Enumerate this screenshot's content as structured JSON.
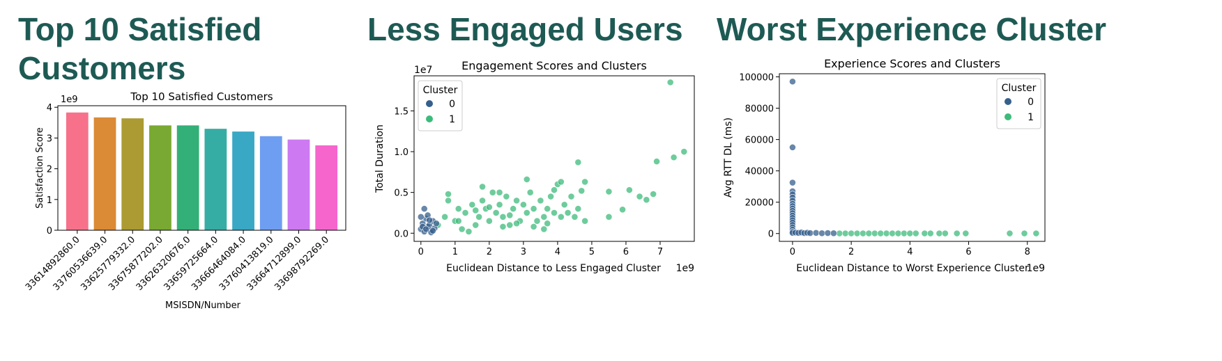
{
  "headings": {
    "top10": [
      "Top 10 Satisfied",
      "Customers"
    ],
    "engaged": "Less Engaged Users",
    "experience": "Worst Experience Cluster"
  },
  "chart_data": [
    {
      "type": "bar",
      "title": "Top 10 Satisfied Customers",
      "xlabel": "MSISDN/Number",
      "ylabel": "Satisfaction Score",
      "y_offset_label": "1e9",
      "ylim": [
        0,
        4.05
      ],
      "yticks": [
        0,
        1,
        2,
        3,
        4
      ],
      "categories": [
        "33614892860.0",
        "33760536639.0",
        "33625779332.0",
        "33675877202.0",
        "33626320676.0",
        "33659725664.0",
        "33666464084.0",
        "33760413819.0",
        "33664712899.0",
        "33698792269.0"
      ],
      "values": [
        3.83,
        3.67,
        3.64,
        3.41,
        3.41,
        3.3,
        3.21,
        3.06,
        2.95,
        2.76
      ],
      "colors": [
        "#f7718a",
        "#db8a35",
        "#ab9b32",
        "#79a932",
        "#33b077",
        "#36ada4",
        "#38a8c5",
        "#6e9ef2",
        "#cd79f2",
        "#f565cc"
      ]
    },
    {
      "type": "scatter",
      "title": "Engagement Scores and Clusters",
      "xlabel": "Euclidean Distance to Less Engaged Cluster",
      "ylabel": "Total Duration",
      "x_offset_label": "1e9",
      "y_offset_label": "1e7",
      "xlim": [
        -0.2,
        8.0
      ],
      "ylim": [
        -0.1,
        1.93
      ],
      "xticks": [
        0,
        1,
        2,
        3,
        4,
        5,
        6,
        7
      ],
      "yticks": [
        0.0,
        0.5,
        1.0,
        1.5
      ],
      "legend": {
        "title": "Cluster",
        "position": "top-left",
        "entries": [
          "0",
          "1"
        ]
      },
      "series": [
        {
          "name": "0",
          "color": "#365f8c",
          "points": [
            [
              0.0,
              0.05
            ],
            [
              0.05,
              0.12
            ],
            [
              0.1,
              0.02
            ],
            [
              0.15,
              0.18
            ],
            [
              0.2,
              0.08
            ],
            [
              0.25,
              0.1
            ],
            [
              0.3,
              0.04
            ],
            [
              0.35,
              0.15
            ],
            [
              0.4,
              0.06
            ],
            [
              0.1,
              0.3
            ],
            [
              0.0,
              0.2
            ],
            [
              0.2,
              0.22
            ],
            [
              0.3,
              0.01
            ],
            [
              0.05,
              0.08
            ],
            [
              0.45,
              0.12
            ],
            [
              0.15,
              0.05
            ],
            [
              0.25,
              0.16
            ],
            [
              0.35,
              0.03
            ]
          ]
        },
        {
          "name": "1",
          "color": "#3dbb7b",
          "points": [
            [
              0.5,
              0.1
            ],
            [
              0.7,
              0.2
            ],
            [
              0.8,
              0.4
            ],
            [
              1.0,
              0.15
            ],
            [
              1.1,
              0.3
            ],
            [
              1.2,
              0.05
            ],
            [
              1.3,
              0.25
            ],
            [
              1.5,
              0.35
            ],
            [
              1.6,
              0.1
            ],
            [
              1.7,
              0.2
            ],
            [
              1.8,
              0.4
            ],
            [
              1.9,
              0.3
            ],
            [
              2.0,
              0.15
            ],
            [
              2.1,
              0.5
            ],
            [
              2.2,
              0.25
            ],
            [
              2.3,
              0.35
            ],
            [
              2.4,
              0.2
            ],
            [
              2.5,
              0.45
            ],
            [
              2.6,
              0.1
            ],
            [
              2.7,
              0.3
            ],
            [
              2.8,
              0.4
            ],
            [
              2.9,
              0.15
            ],
            [
              3.0,
              0.35
            ],
            [
              3.1,
              0.25
            ],
            [
              3.2,
              0.5
            ],
            [
              3.3,
              0.3
            ],
            [
              3.4,
              0.15
            ],
            [
              3.5,
              0.4
            ],
            [
              3.6,
              0.2
            ],
            [
              3.7,
              0.3
            ],
            [
              3.8,
              0.45
            ],
            [
              3.9,
              0.25
            ],
            [
              4.0,
              0.6
            ],
            [
              4.1,
              0.2
            ],
            [
              4.2,
              0.35
            ],
            [
              4.3,
              0.25
            ],
            [
              4.4,
              0.45
            ],
            [
              4.5,
              0.2
            ],
            [
              4.6,
              0.3
            ],
            [
              4.8,
              0.15
            ],
            [
              0.8,
              0.48
            ],
            [
              1.8,
              0.57
            ],
            [
              2.3,
              0.5
            ],
            [
              3.1,
              0.66
            ],
            [
              3.9,
              0.53
            ],
            [
              4.1,
              0.63
            ],
            [
              4.6,
              0.87
            ],
            [
              4.7,
              0.52
            ],
            [
              4.8,
              0.63
            ],
            [
              5.5,
              0.51
            ],
            [
              5.5,
              0.2
            ],
            [
              5.9,
              0.29
            ],
            [
              6.1,
              0.53
            ],
            [
              6.4,
              0.45
            ],
            [
              6.6,
              0.41
            ],
            [
              6.8,
              0.48
            ],
            [
              6.9,
              0.88
            ],
            [
              7.3,
              1.85
            ],
            [
              7.4,
              0.93
            ],
            [
              7.7,
              1.0
            ],
            [
              2.4,
              0.08
            ],
            [
              1.4,
              0.02
            ],
            [
              3.6,
              0.05
            ],
            [
              2.0,
              0.32
            ],
            [
              2.8,
              0.12
            ],
            [
              3.3,
              0.08
            ],
            [
              1.1,
              0.15
            ],
            [
              1.6,
              0.28
            ],
            [
              2.6,
              0.22
            ],
            [
              3.7,
              0.12
            ]
          ]
        }
      ]
    },
    {
      "type": "scatter",
      "title": "Experience Scores and Clusters",
      "xlabel": "Euclidean Distance to Worst Experience Cluster",
      "ylabel": "Avg RTT DL (ms)",
      "x_offset_label": "1e9",
      "xlim": [
        -0.45,
        8.6
      ],
      "ylim": [
        -5000,
        102000
      ],
      "xticks": [
        0,
        2,
        4,
        6,
        8
      ],
      "yticks": [
        0,
        20000,
        40000,
        60000,
        80000,
        100000
      ],
      "legend": {
        "title": "Cluster",
        "position": "top-right",
        "entries": [
          "0",
          "1"
        ]
      },
      "series": [
        {
          "name": "0",
          "color": "#365f8c",
          "points": [
            [
              0,
              97000
            ],
            [
              0,
              55000
            ],
            [
              0,
              32500
            ],
            [
              0,
              27000
            ],
            [
              0,
              25000
            ],
            [
              0,
              23000
            ],
            [
              0,
              21000
            ],
            [
              0,
              19000
            ],
            [
              0,
              17500
            ],
            [
              0,
              16000
            ],
            [
              0,
              14500
            ],
            [
              0,
              13000
            ],
            [
              0,
              11500
            ],
            [
              0,
              10000
            ],
            [
              0,
              8500
            ],
            [
              0,
              7000
            ],
            [
              0,
              5500
            ],
            [
              0,
              4000
            ],
            [
              0,
              2500
            ],
            [
              0,
              1200
            ],
            [
              0,
              400
            ],
            [
              0.1,
              600
            ],
            [
              0.2,
              400
            ],
            [
              0.3,
              700
            ],
            [
              0.4,
              300
            ],
            [
              0.5,
              500
            ],
            [
              0.6,
              300
            ],
            [
              0.8,
              400
            ],
            [
              1.0,
              200
            ],
            [
              1.2,
              300
            ],
            [
              1.4,
              200
            ]
          ]
        },
        {
          "name": "1",
          "color": "#3dbb7b",
          "points": [
            [
              1.6,
              100
            ],
            [
              1.8,
              100
            ],
            [
              2.0,
              100
            ],
            [
              2.2,
              100
            ],
            [
              2.4,
              100
            ],
            [
              2.6,
              100
            ],
            [
              2.8,
              100
            ],
            [
              3.0,
              100
            ],
            [
              3.2,
              100
            ],
            [
              3.4,
              100
            ],
            [
              3.6,
              100
            ],
            [
              3.8,
              100
            ],
            [
              4.0,
              100
            ],
            [
              4.2,
              100
            ],
            [
              4.5,
              100
            ],
            [
              4.7,
              100
            ],
            [
              5.0,
              100
            ],
            [
              5.2,
              100
            ],
            [
              5.6,
              100
            ],
            [
              5.9,
              100
            ],
            [
              7.4,
              100
            ],
            [
              7.9,
              100
            ],
            [
              8.3,
              100
            ]
          ]
        }
      ]
    }
  ]
}
